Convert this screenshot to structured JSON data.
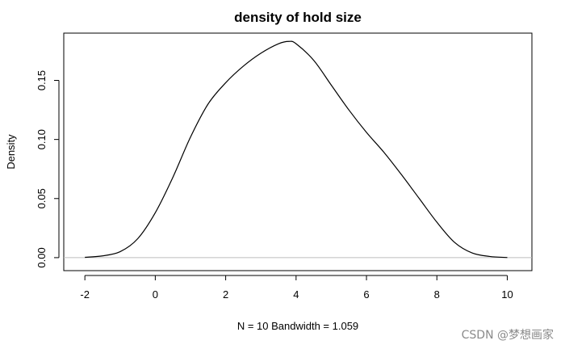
{
  "chart_data": {
    "type": "line",
    "title": "density of hold size",
    "xlabel": "N = 10   Bandwidth = 1.059",
    "ylabel": "Density",
    "xlim": [
      -2.6,
      10.7
    ],
    "ylim": [
      -0.011,
      0.19
    ],
    "x_ticks": [
      -2,
      0,
      2,
      4,
      6,
      8,
      10
    ],
    "y_ticks": [
      0.0,
      0.05,
      0.1,
      0.15
    ],
    "x_tick_labels": [
      "-2",
      "0",
      "2",
      "4",
      "6",
      "8",
      "10"
    ],
    "y_tick_labels": [
      "0.00",
      "0.05",
      "0.10",
      "0.15"
    ],
    "baseline_y": 0,
    "grid": false,
    "legend": "none",
    "series": [
      {
        "color": "#000000",
        "x": [
          -2.0,
          -1.5,
          -1.0,
          -0.5,
          0.0,
          0.5,
          1.0,
          1.5,
          2.0,
          2.5,
          3.0,
          3.5,
          3.8,
          4.0,
          4.5,
          5.0,
          5.5,
          6.0,
          6.5,
          7.0,
          7.5,
          8.0,
          8.5,
          9.0,
          9.5,
          10.0
        ],
        "y": [
          0.0003,
          0.0015,
          0.005,
          0.016,
          0.038,
          0.068,
          0.102,
          0.13,
          0.148,
          0.162,
          0.173,
          0.181,
          0.183,
          0.181,
          0.167,
          0.146,
          0.125,
          0.106,
          0.089,
          0.07,
          0.05,
          0.03,
          0.013,
          0.004,
          0.001,
          0.0001
        ]
      }
    ]
  },
  "watermark": "CSDN @梦想画家"
}
